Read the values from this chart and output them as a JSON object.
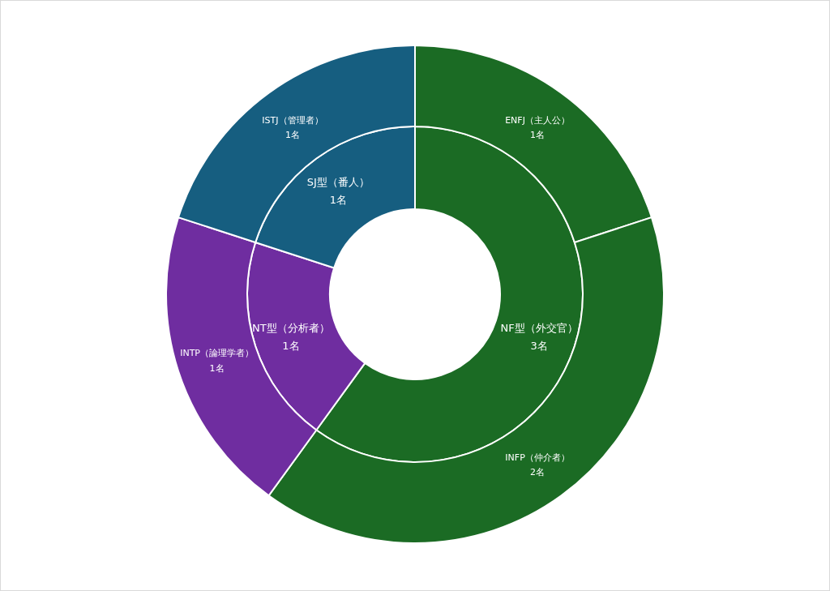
{
  "chart_data": [
    {
      "type": "donut",
      "categories": [
        "NF型（外交官）",
        "NT型（分析者）",
        "SJ型（番人）"
      ],
      "values": [
        3,
        1,
        1
      ],
      "value_labels": [
        "3名",
        "1名",
        "1名"
      ],
      "colors": [
        "#1b6b24",
        "#6f2da0",
        "#165e80"
      ]
    },
    {
      "type": "donut",
      "categories": [
        "ENFJ（主人公）",
        "INFP（仲介者）",
        "INTP（論理学者）",
        "ISTJ（管理者）"
      ],
      "values": [
        1,
        2,
        1,
        1
      ],
      "value_labels": [
        "1名",
        "2名",
        "1名",
        "1名"
      ],
      "colors": [
        "#1b6b24",
        "#1b6b24",
        "#6f2da0",
        "#165e80"
      ]
    }
  ]
}
